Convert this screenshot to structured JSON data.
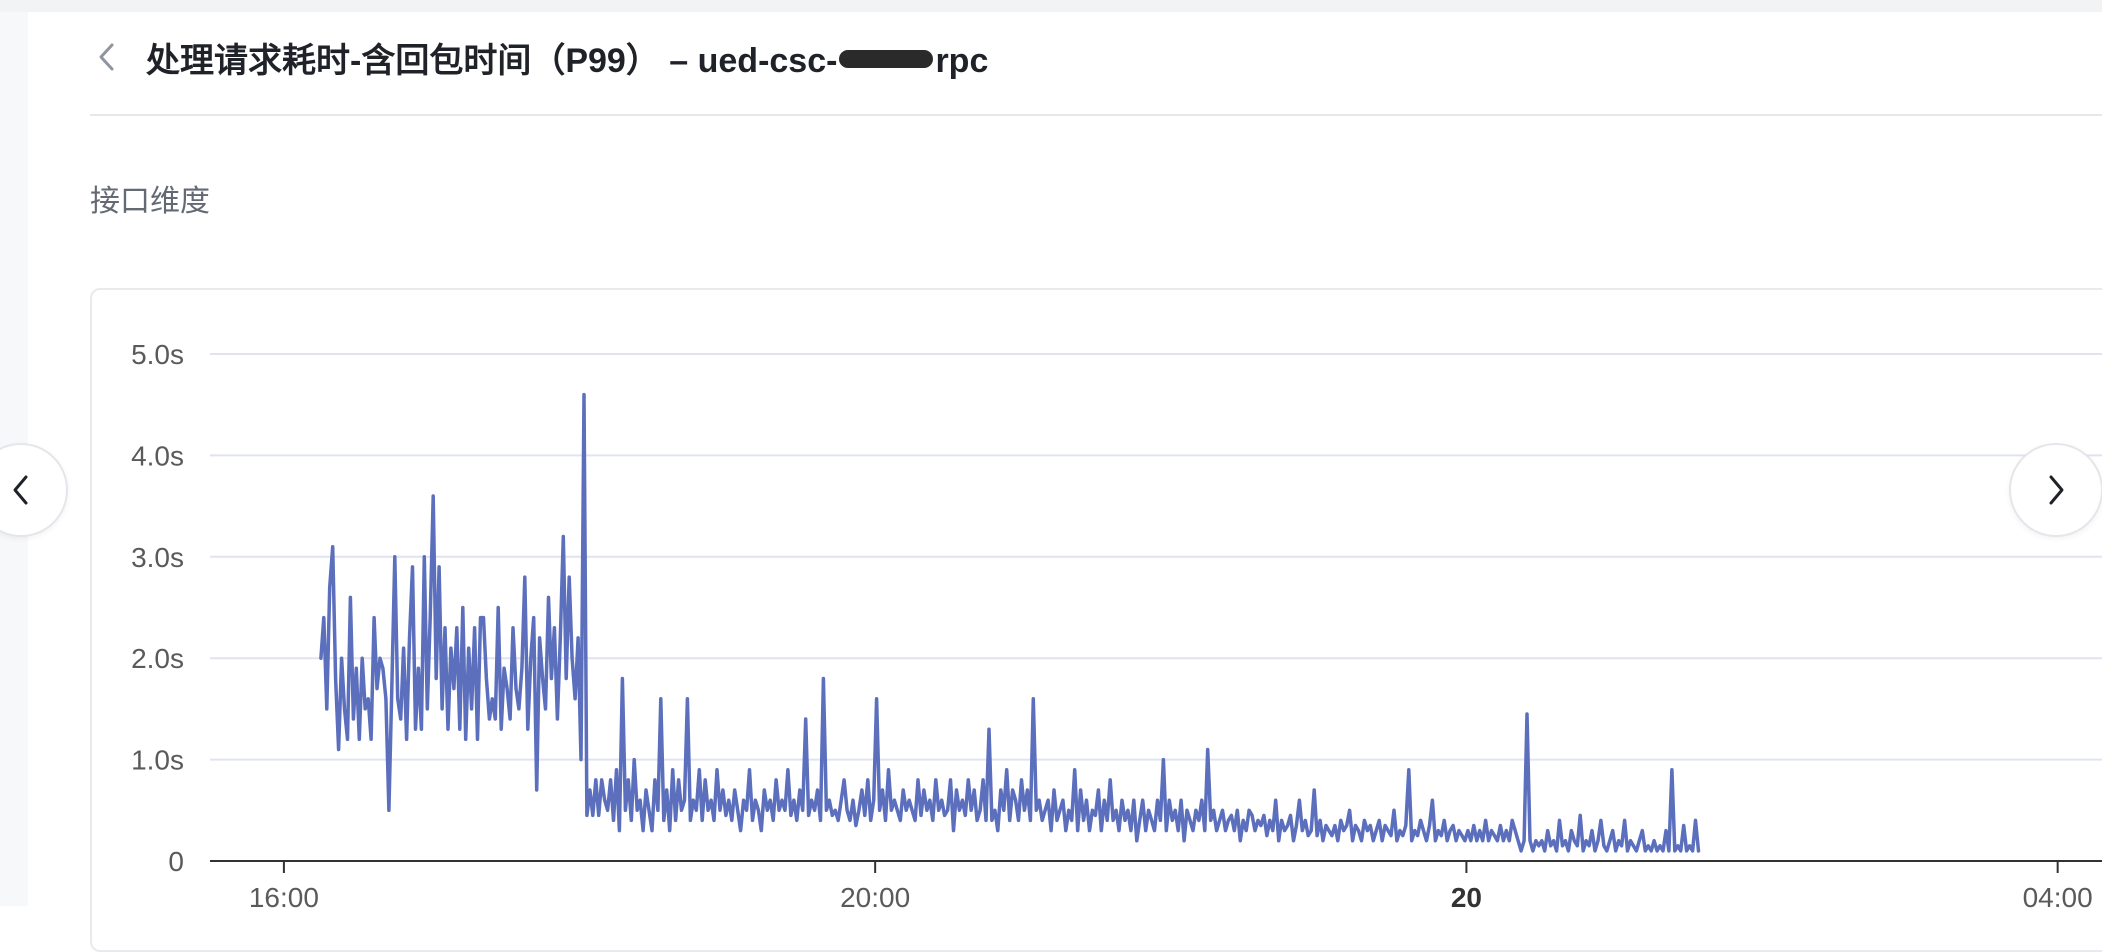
{
  "header": {
    "title_prefix": "处理请求耗时-含回包时间（P99） – ued-csc-",
    "title_suffix": "rpc"
  },
  "section": {
    "title": "接口维度"
  },
  "icons": {
    "back": "chevron-left-icon",
    "prev": "chevron-left-icon",
    "next": "chevron-right-icon"
  },
  "colors": {
    "series": "#5b6fbd",
    "grid": "#e1e4f0",
    "axis": "#333333",
    "tick": "#5a5a5a"
  },
  "chart_data": {
    "type": "line",
    "y_unit": "s",
    "ylim": [
      0,
      5.0
    ],
    "y_ticks": [
      {
        "value": 0,
        "label": "0"
      },
      {
        "value": 1.0,
        "label": "1.0s"
      },
      {
        "value": 2.0,
        "label": "2.0s"
      },
      {
        "value": 3.0,
        "label": "3.0s"
      },
      {
        "value": 4.0,
        "label": "4.0s"
      },
      {
        "value": 5.0,
        "label": "5.0s"
      }
    ],
    "x_unit": "hours",
    "xlim": [
      15.5,
      28.3
    ],
    "x_ticks": [
      {
        "value": 16,
        "label": "16:00",
        "bold": false
      },
      {
        "value": 20,
        "label": "20:00",
        "bold": false
      },
      {
        "value": 24,
        "label": "20",
        "bold": true
      },
      {
        "value": 28,
        "label": "04:00",
        "bold": false
      }
    ],
    "grid": true,
    "legend": "none",
    "series": [
      {
        "x_start": 16.25,
        "x_step": 0.02,
        "values": [
          2.0,
          2.4,
          1.5,
          2.7,
          3.1,
          1.8,
          1.1,
          2.0,
          1.5,
          1.2,
          2.6,
          1.4,
          1.9,
          1.2,
          2.0,
          1.5,
          1.6,
          1.2,
          2.4,
          1.7,
          2.0,
          1.9,
          1.6,
          0.5,
          1.7,
          3.0,
          1.6,
          1.4,
          2.1,
          1.2,
          2.2,
          2.9,
          1.3,
          1.9,
          1.3,
          3.0,
          1.5,
          2.4,
          3.6,
          1.8,
          2.9,
          1.5,
          2.3,
          1.3,
          2.1,
          1.7,
          2.3,
          1.3,
          2.5,
          1.2,
          2.1,
          1.5,
          2.3,
          1.2,
          2.4,
          2.4,
          1.8,
          1.4,
          1.6,
          1.4,
          2.5,
          1.3,
          1.9,
          1.7,
          1.4,
          2.3,
          1.7,
          1.5,
          1.9,
          2.8,
          1.3,
          2.0,
          2.4,
          0.7,
          2.2,
          1.8,
          1.5,
          2.6,
          1.8,
          2.3,
          1.4,
          2.2,
          3.2,
          1.8,
          2.8,
          2.0,
          1.6,
          2.2,
          1.0,
          4.6,
          0.45,
          0.7,
          0.45,
          0.8,
          0.45,
          0.8,
          0.6,
          0.5,
          0.8,
          0.4,
          0.9,
          0.3,
          1.8,
          0.5,
          0.8,
          0.4,
          1.0,
          0.5,
          0.6,
          0.3,
          0.7,
          0.5,
          0.3,
          0.8,
          0.5,
          1.6,
          0.4,
          0.7,
          0.3,
          0.9,
          0.4,
          0.8,
          0.5,
          0.6,
          1.6,
          0.4,
          0.6,
          0.5,
          0.9,
          0.4,
          0.8,
          0.5,
          0.6,
          0.4,
          0.9,
          0.5,
          0.7,
          0.45,
          0.6,
          0.4,
          0.7,
          0.5,
          0.3,
          0.6,
          0.5,
          0.9,
          0.4,
          0.6,
          0.5,
          0.3,
          0.7,
          0.5,
          0.6,
          0.4,
          0.8,
          0.5,
          0.6,
          0.5,
          0.9,
          0.45,
          0.6,
          0.4,
          0.7,
          0.5,
          1.4,
          0.45,
          0.6,
          0.5,
          0.7,
          0.4,
          1.8,
          0.5,
          0.6,
          0.45,
          0.5,
          0.4,
          0.6,
          0.8,
          0.5,
          0.4,
          0.6,
          0.35,
          0.5,
          0.7,
          0.45,
          0.8,
          0.4,
          0.6,
          1.6,
          0.5,
          0.7,
          0.4,
          0.9,
          0.5,
          0.6,
          0.5,
          0.4,
          0.7,
          0.5,
          0.6,
          0.5,
          0.4,
          0.8,
          0.45,
          0.7,
          0.5,
          0.6,
          0.4,
          0.8,
          0.5,
          0.6,
          0.45,
          0.5,
          0.8,
          0.3,
          0.7,
          0.5,
          0.6,
          0.45,
          0.8,
          0.5,
          0.7,
          0.4,
          0.5,
          0.8,
          0.4,
          1.3,
          0.4,
          0.5,
          0.3,
          0.7,
          0.5,
          0.9,
          0.4,
          0.7,
          0.6,
          0.4,
          0.8,
          0.5,
          0.7,
          0.4,
          1.6,
          0.5,
          0.6,
          0.4,
          0.5,
          0.6,
          0.3,
          0.7,
          0.4,
          0.5,
          0.6,
          0.3,
          0.5,
          0.4,
          0.9,
          0.3,
          0.7,
          0.4,
          0.6,
          0.3,
          0.5,
          0.45,
          0.7,
          0.3,
          0.6,
          0.4,
          0.8,
          0.4,
          0.5,
          0.3,
          0.6,
          0.4,
          0.5,
          0.3,
          0.6,
          0.2,
          0.4,
          0.6,
          0.3,
          0.5,
          0.4,
          0.3,
          0.6,
          0.4,
          1.0,
          0.3,
          0.6,
          0.4,
          0.5,
          0.3,
          0.6,
          0.2,
          0.5,
          0.4,
          0.3,
          0.5,
          0.4,
          0.6,
          0.3,
          1.1,
          0.4,
          0.5,
          0.3,
          0.4,
          0.5,
          0.3,
          0.4,
          0.45,
          0.3,
          0.5,
          0.2,
          0.4,
          0.3,
          0.5,
          0.45,
          0.3,
          0.4,
          0.35,
          0.45,
          0.25,
          0.4,
          0.3,
          0.6,
          0.2,
          0.4,
          0.3,
          0.35,
          0.45,
          0.2,
          0.35,
          0.6,
          0.3,
          0.4,
          0.25,
          0.3,
          0.7,
          0.25,
          0.4,
          0.2,
          0.35,
          0.3,
          0.25,
          0.35,
          0.2,
          0.4,
          0.3,
          0.35,
          0.5,
          0.2,
          0.35,
          0.3,
          0.2,
          0.4,
          0.3,
          0.35,
          0.2,
          0.3,
          0.4,
          0.2,
          0.35,
          0.3,
          0.25,
          0.5,
          0.2,
          0.3,
          0.25,
          0.35,
          0.9,
          0.2,
          0.3,
          0.25,
          0.4,
          0.3,
          0.2,
          0.35,
          0.6,
          0.2,
          0.3,
          0.25,
          0.4,
          0.2,
          0.3,
          0.35,
          0.2,
          0.3,
          0.25,
          0.2,
          0.3,
          0.2,
          0.35,
          0.2,
          0.3,
          0.2,
          0.4,
          0.2,
          0.3,
          0.25,
          0.2,
          0.35,
          0.2,
          0.3,
          0.2,
          0.4,
          0.3,
          0.2,
          0.1,
          0.2,
          1.45,
          0.2,
          0.1,
          0.2,
          0.15,
          0.2,
          0.1,
          0.3,
          0.15,
          0.2,
          0.1,
          0.4,
          0.15,
          0.2,
          0.1,
          0.3,
          0.2,
          0.15,
          0.45,
          0.1,
          0.2,
          0.15,
          0.3,
          0.1,
          0.2,
          0.4,
          0.15,
          0.1,
          0.2,
          0.3,
          0.1,
          0.2,
          0.15,
          0.4,
          0.1,
          0.2,
          0.15,
          0.1,
          0.2,
          0.3,
          0.1,
          0.15,
          0.1,
          0.2,
          0.1,
          0.15,
          0.1,
          0.3,
          0.1,
          0.9,
          0.1,
          0.15,
          0.1,
          0.35,
          0.1,
          0.15,
          0.1,
          0.4,
          0.1
        ]
      }
    ]
  }
}
